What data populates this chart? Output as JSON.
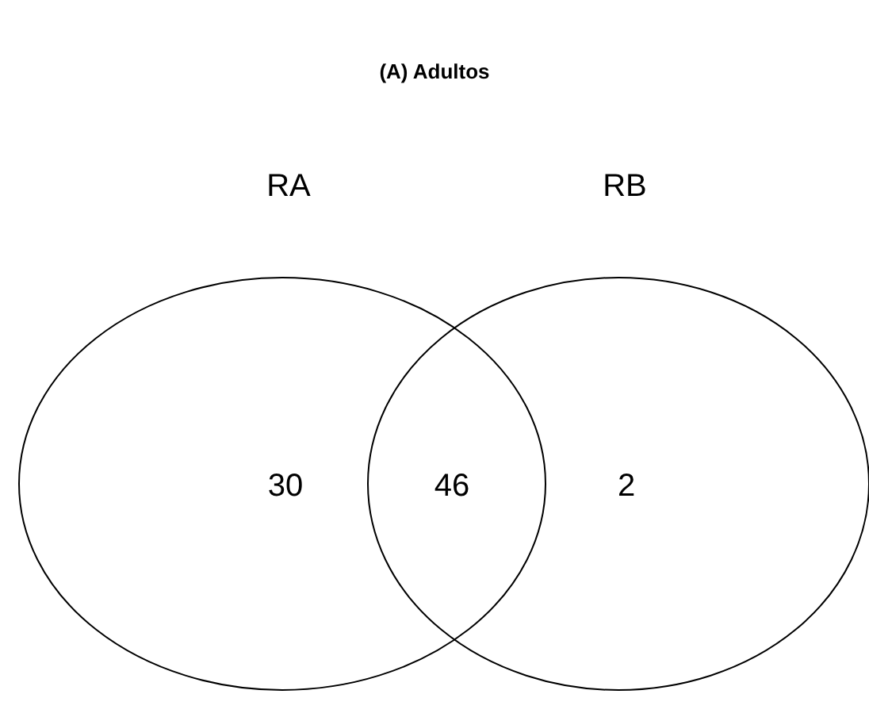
{
  "chart_data": {
    "type": "other",
    "title": "(A) Adultos",
    "categories": [
      "RA",
      null,
      "RB"
    ],
    "values": [
      30,
      46,
      2
    ],
    "color": "#000000",
    "data_labels": true
  }
}
